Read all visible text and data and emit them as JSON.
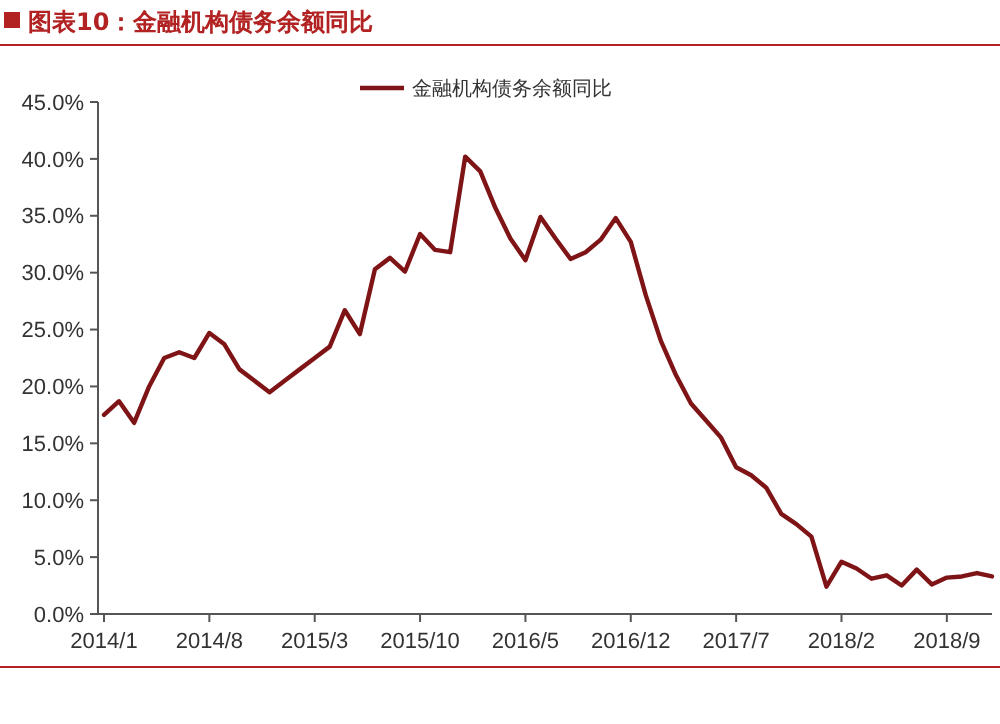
{
  "chart_data": {
    "type": "line",
    "title": "图表10：金融机构债务余额同比",
    "categories": [
      "2014/1",
      null,
      null,
      null,
      null,
      null,
      null,
      "2014/8",
      null,
      null,
      null,
      null,
      null,
      null,
      "2015/3",
      null,
      null,
      null,
      null,
      null,
      null,
      "2015/10",
      null,
      null,
      null,
      null,
      null,
      null,
      "2016/5",
      null,
      null,
      null,
      null,
      null,
      null,
      "2016/12",
      null,
      null,
      null,
      null,
      null,
      null,
      "2017/7",
      null,
      null,
      null,
      null,
      null,
      null,
      "2018/2",
      null,
      null,
      null,
      null,
      null,
      null,
      "2018/9",
      null,
      null,
      null
    ],
    "series": [
      {
        "name": "金融机构债务余额同比",
        "color": "#7f1416",
        "values": [
          17.5,
          18.7,
          16.8,
          20,
          22.5,
          23,
          22.5,
          24.7,
          23.7,
          21.5,
          20.5,
          19.5,
          20.5,
          21.5,
          22.5,
          23.5,
          26.7,
          24.6,
          30.3,
          31.3,
          30.1,
          33.4,
          32.0,
          31.8,
          40.2,
          38.9,
          35.7,
          33.0,
          31.1,
          34.9,
          33.0,
          31.2,
          31.8,
          32.9,
          34.8,
          32.7,
          28,
          24,
          21,
          18.5,
          17,
          15.5,
          12.9,
          12.2,
          11.1,
          8.8,
          7.9,
          6.8,
          2.4,
          4.6,
          4.0,
          3.1,
          3.4,
          2.5,
          3.9,
          2.6,
          3.2,
          3.3,
          3.6,
          3.3
        ]
      }
    ],
    "ylim": [
      0,
      45
    ],
    "yticks": [
      {
        "value": 0,
        "label": "0.0%"
      },
      {
        "value": 5,
        "label": "5.0%"
      },
      {
        "value": 10,
        "label": "10.0%"
      },
      {
        "value": 15,
        "label": "15.0%"
      },
      {
        "value": 20,
        "label": "20.0%"
      },
      {
        "value": 25,
        "label": "25.0%"
      },
      {
        "value": 30,
        "label": "30.0%"
      },
      {
        "value": 35,
        "label": "35.0%"
      },
      {
        "value": 40,
        "label": "40.0%"
      },
      {
        "value": 45,
        "label": "45.0%"
      }
    ],
    "grid": false,
    "legend": "top",
    "marker": "none",
    "line_style": "solid"
  }
}
